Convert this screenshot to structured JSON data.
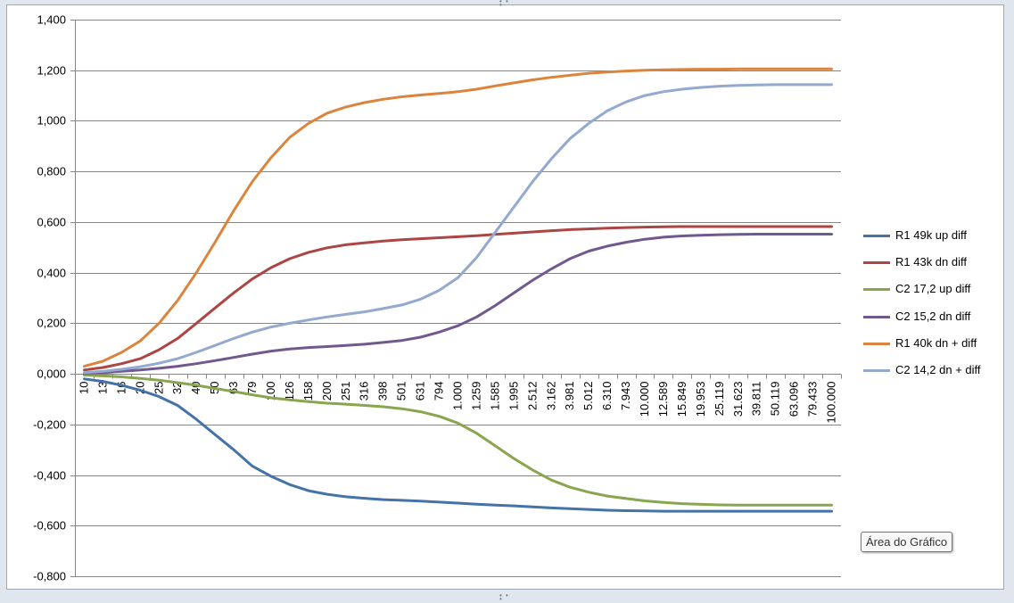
{
  "tooltip": {
    "text": "Área do Gráfico"
  },
  "colors": {
    "series": [
      "#4572a7",
      "#aa4643",
      "#89a54e",
      "#71588f",
      "#db843d",
      "#93a9cf"
    ],
    "grid": "#868686"
  },
  "chart_data": {
    "type": "line",
    "title": "",
    "xlabel": "",
    "ylabel": "",
    "ylim": [
      -0.8,
      1.4
    ],
    "yticks": [
      "1,400",
      "1,200",
      "1,000",
      "0,800",
      "0,600",
      "0,400",
      "0,200",
      "0,000",
      "-0,200",
      "-0,400",
      "-0,600",
      "-0,800"
    ],
    "grid": true,
    "legend_position": "right",
    "categories": [
      "10",
      "13",
      "16",
      "20",
      "25",
      "32",
      "40",
      "50",
      "63",
      "79",
      "100",
      "126",
      "158",
      "200",
      "251",
      "316",
      "398",
      "501",
      "631",
      "794",
      "1.000",
      "1.259",
      "1.585",
      "1.995",
      "2.512",
      "3.162",
      "3.981",
      "5.012",
      "6.310",
      "7.943",
      "10.000",
      "12.589",
      "15.849",
      "19.953",
      "25.119",
      "31.623",
      "39.811",
      "50.119",
      "63.096",
      "79.433",
      "100.000"
    ],
    "series": [
      {
        "name": "R1 49k up diff",
        "values": [
          -0.02,
          -0.03,
          -0.045,
          -0.065,
          -0.09,
          -0.125,
          -0.18,
          -0.24,
          -0.3,
          -0.365,
          -0.405,
          -0.438,
          -0.462,
          -0.476,
          -0.486,
          -0.492,
          -0.497,
          -0.5,
          -0.503,
          -0.507,
          -0.511,
          -0.515,
          -0.519,
          -0.522,
          -0.526,
          -0.53,
          -0.533,
          -0.536,
          -0.539,
          -0.541,
          -0.542,
          -0.543,
          -0.543,
          -0.543,
          -0.543,
          -0.543,
          -0.543,
          -0.543,
          -0.543,
          -0.543,
          -0.543
        ]
      },
      {
        "name": "R1 43k dn diff",
        "values": [
          0.015,
          0.025,
          0.04,
          0.06,
          0.095,
          0.14,
          0.2,
          0.26,
          0.32,
          0.375,
          0.42,
          0.455,
          0.48,
          0.498,
          0.51,
          0.518,
          0.525,
          0.53,
          0.534,
          0.538,
          0.542,
          0.546,
          0.551,
          0.556,
          0.561,
          0.566,
          0.57,
          0.573,
          0.576,
          0.578,
          0.58,
          0.581,
          0.582,
          0.582,
          0.582,
          0.582,
          0.582,
          0.582,
          0.582,
          0.582,
          0.582
        ]
      },
      {
        "name": "C2 17,2 up diff",
        "values": [
          -0.005,
          -0.008,
          -0.012,
          -0.018,
          -0.025,
          -0.035,
          -0.045,
          -0.058,
          -0.07,
          -0.083,
          -0.095,
          -0.103,
          -0.11,
          -0.116,
          -0.12,
          -0.125,
          -0.13,
          -0.138,
          -0.15,
          -0.168,
          -0.195,
          -0.235,
          -0.285,
          -0.335,
          -0.38,
          -0.42,
          -0.448,
          -0.468,
          -0.483,
          -0.493,
          -0.502,
          -0.508,
          -0.513,
          -0.516,
          -0.518,
          -0.519,
          -0.519,
          -0.519,
          -0.519,
          -0.519,
          -0.519
        ]
      },
      {
        "name": "C2 15,2 dn diff",
        "values": [
          0.002,
          0.005,
          0.01,
          0.015,
          0.022,
          0.03,
          0.04,
          0.052,
          0.065,
          0.078,
          0.09,
          0.098,
          0.104,
          0.108,
          0.112,
          0.117,
          0.124,
          0.132,
          0.145,
          0.165,
          0.19,
          0.225,
          0.27,
          0.32,
          0.37,
          0.415,
          0.455,
          0.485,
          0.505,
          0.52,
          0.532,
          0.54,
          0.545,
          0.548,
          0.55,
          0.551,
          0.552,
          0.552,
          0.552,
          0.552,
          0.552
        ]
      },
      {
        "name": "R1 40k dn + diff",
        "values": [
          0.03,
          0.05,
          0.085,
          0.13,
          0.2,
          0.29,
          0.4,
          0.52,
          0.645,
          0.76,
          0.855,
          0.935,
          0.99,
          1.03,
          1.055,
          1.072,
          1.085,
          1.095,
          1.102,
          1.108,
          1.115,
          1.125,
          1.138,
          1.15,
          1.162,
          1.172,
          1.18,
          1.188,
          1.193,
          1.197,
          1.2,
          1.202,
          1.203,
          1.204,
          1.204,
          1.205,
          1.205,
          1.205,
          1.205,
          1.205,
          1.205
        ]
      },
      {
        "name": "C2 14,2 dn + diff",
        "values": [
          0.005,
          0.01,
          0.018,
          0.028,
          0.042,
          0.06,
          0.085,
          0.112,
          0.14,
          0.165,
          0.185,
          0.2,
          0.213,
          0.225,
          0.235,
          0.245,
          0.258,
          0.272,
          0.295,
          0.33,
          0.38,
          0.46,
          0.56,
          0.66,
          0.76,
          0.85,
          0.93,
          0.99,
          1.04,
          1.075,
          1.1,
          1.115,
          1.125,
          1.132,
          1.137,
          1.14,
          1.142,
          1.143,
          1.143,
          1.143,
          1.143
        ]
      }
    ]
  }
}
